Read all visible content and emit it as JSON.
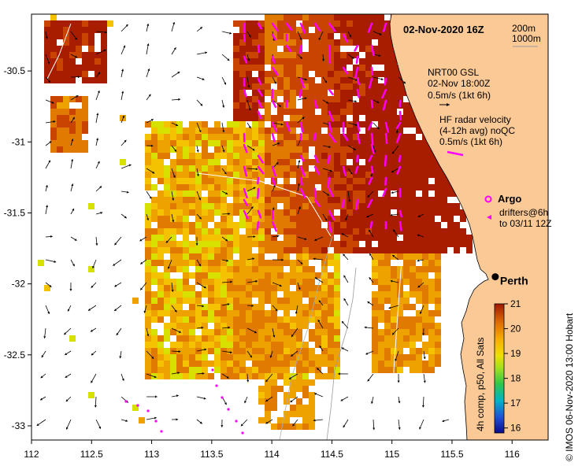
{
  "map": {
    "date_title": "02-Nov-2020 16Z",
    "depth_labels": [
      "200m",
      "1000m"
    ],
    "lon_ticks": [
      "112",
      "112.5",
      "113",
      "113.5",
      "114",
      "114.5",
      "115",
      "115.5",
      "116"
    ],
    "lat_ticks": [
      "-30.5",
      "-31",
      "-31.5",
      "-32",
      "-32.5",
      "-33"
    ],
    "lon_range": [
      112,
      116.3
    ],
    "lat_range": [
      -33.1,
      -30.1
    ],
    "city": "Perth",
    "city_lon": 115.86,
    "city_lat": -31.95
  },
  "legend": {
    "model_line1": "NRT00 GSL",
    "model_line2": "02-Nov 18:00Z",
    "model_scale": "0.5m/s (1kt 6h)",
    "hf_line1": "HF radar velocity",
    "hf_line2": "(4-12h avg) noQC",
    "hf_scale": "0.5m/s (1kt 6h)",
    "argo": "Argo",
    "drifters_line1": "drifters@6h",
    "drifters_line2": "to 03/11 12Z",
    "hf_color": "#ff00ff",
    "land_color": "#fbc995"
  },
  "colorbar": {
    "ticks": [
      "21",
      "20",
      "19",
      "18",
      "17",
      "16"
    ],
    "min": 15.8,
    "max": 21,
    "label": "4h comp, p50, All Sats"
  },
  "credit": "©  IMOS 06-Nov-2020 13:00 Hobart"
}
